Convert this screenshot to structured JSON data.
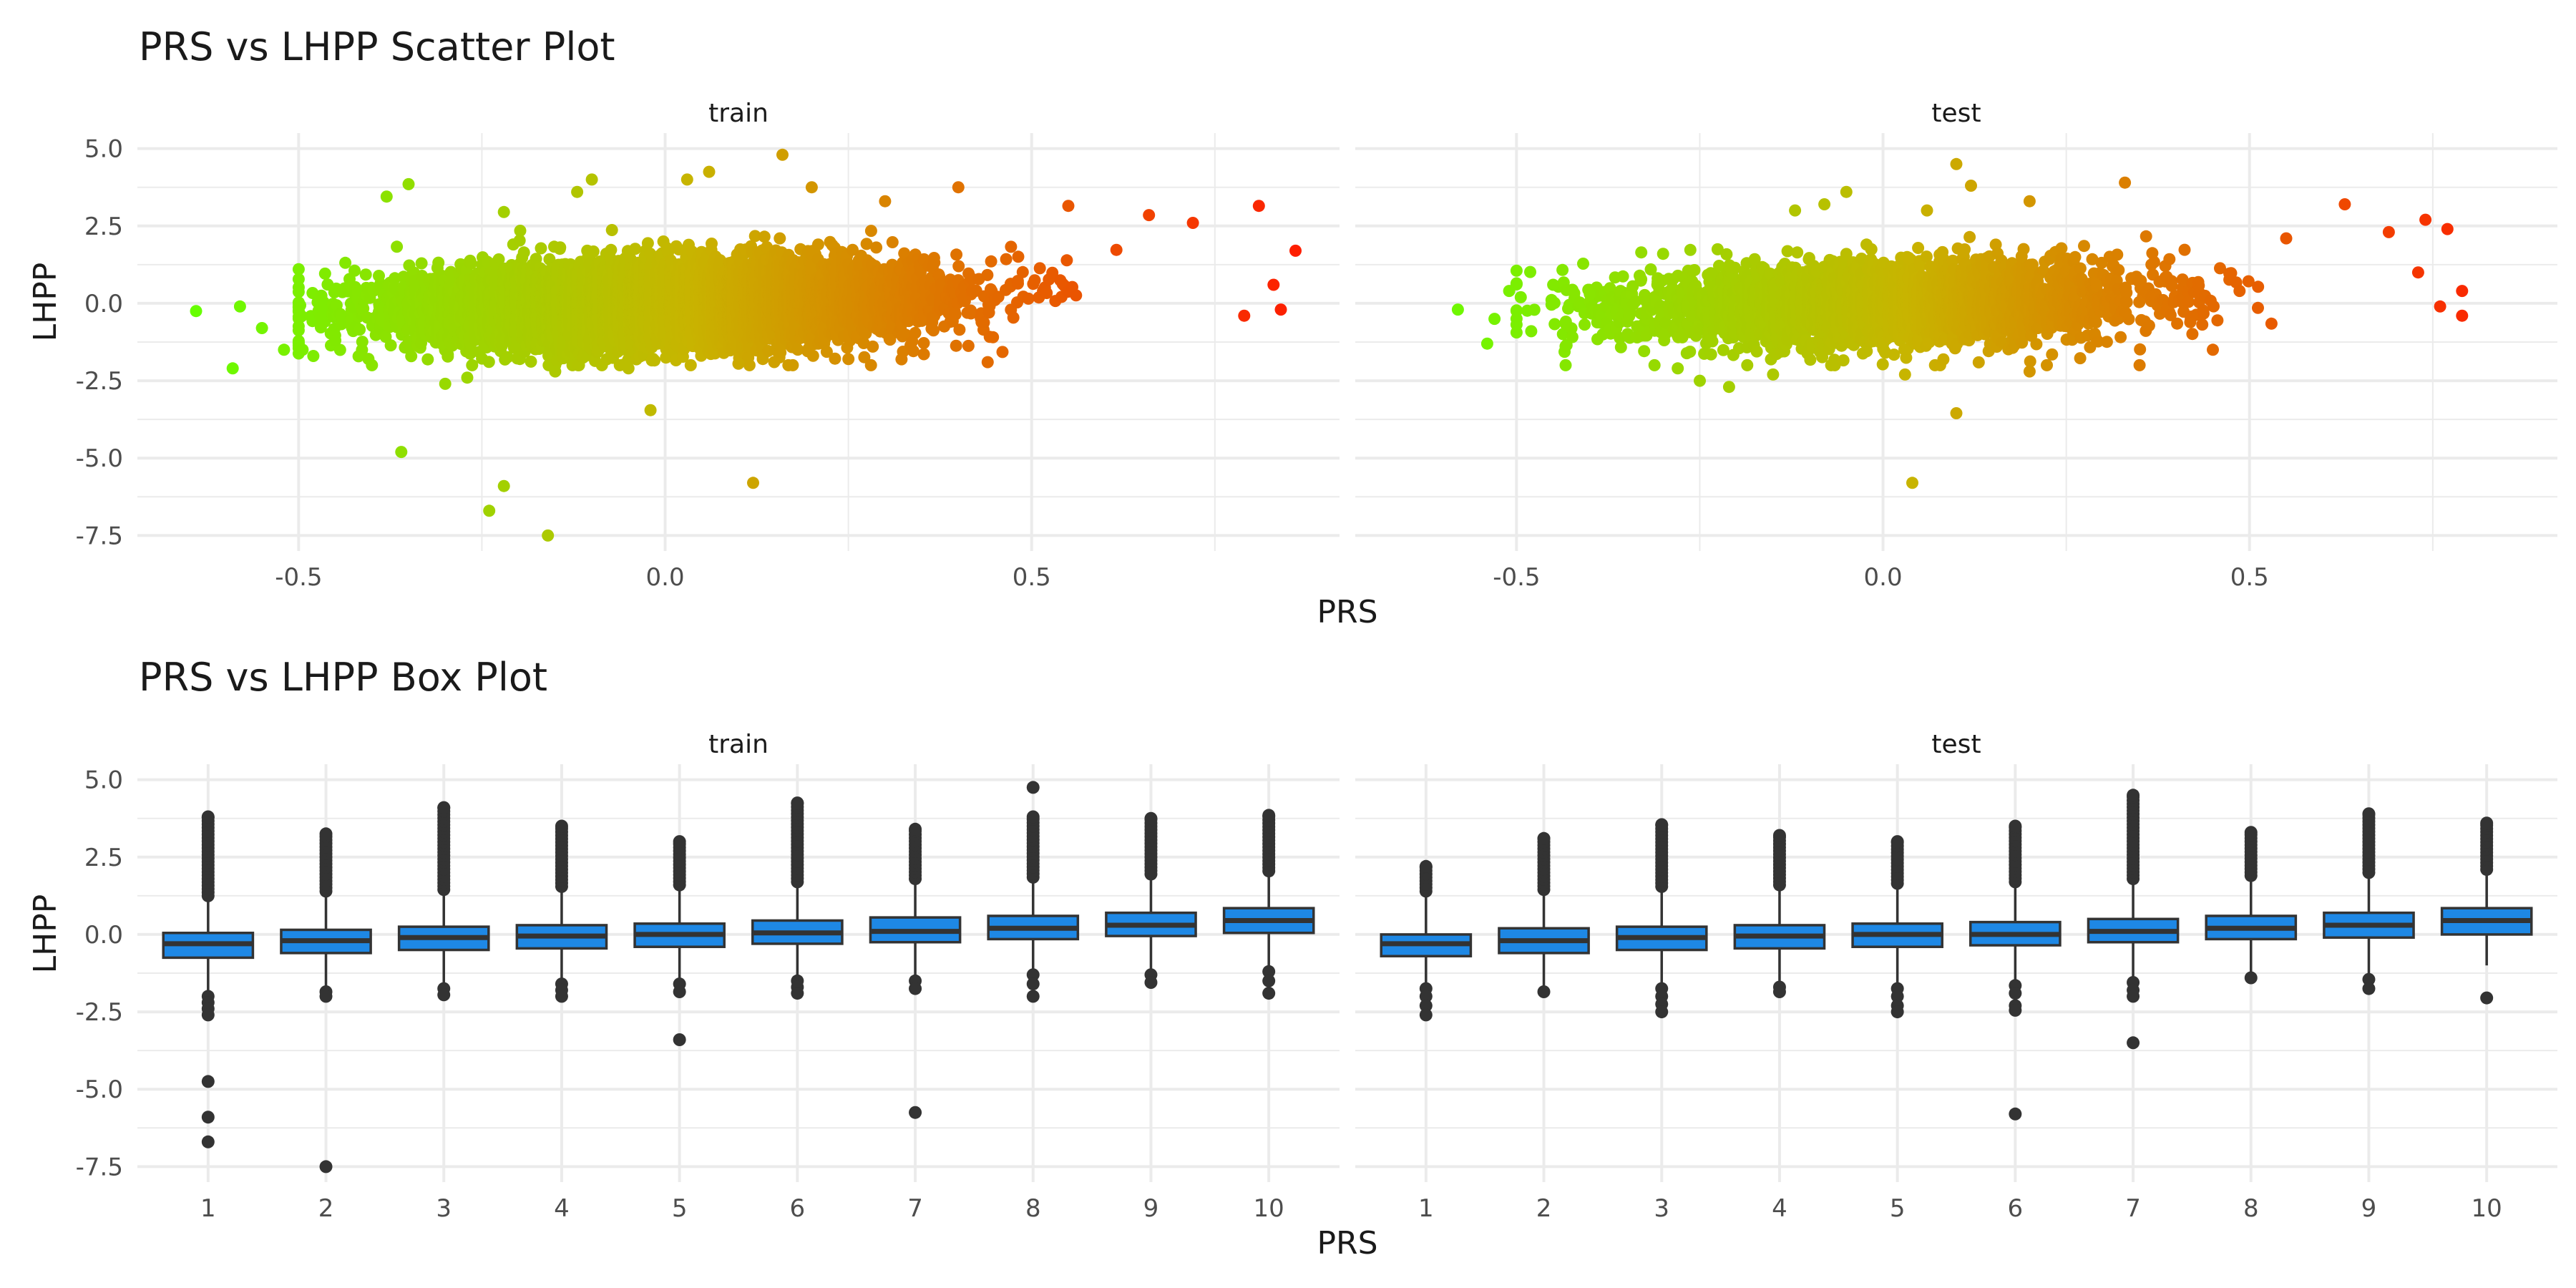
{
  "chart_data": [
    {
      "type": "scatter",
      "title": "PRS vs LHPP Scatter Plot",
      "xlabel": "PRS",
      "ylabel": "LHPP",
      "facets": [
        "train",
        "test"
      ],
      "xlim": [
        -0.72,
        0.92
      ],
      "ylim": [
        -8.0,
        5.5
      ],
      "xticks": [
        -0.5,
        0.0,
        0.5
      ],
      "xtick_labels": [
        "-0.5",
        "0.0",
        "0.5"
      ],
      "yticks": [
        5.0,
        2.5,
        0.0,
        -2.5,
        -5.0,
        -7.5
      ],
      "ytick_labels": [
        "5.0",
        "2.5",
        "0.0",
        "-2.5",
        "-5.0",
        "-7.5"
      ],
      "color_gradient": {
        "low": "#66ff00",
        "mid": "#c8b400",
        "high": "#ff1a00",
        "mapped_to": "PRS"
      },
      "grid": true,
      "legend": "none",
      "series": [
        {
          "facet": "train",
          "points": [
            [
              -0.64,
              -0.25
            ],
            [
              -0.59,
              -2.1
            ],
            [
              -0.58,
              -0.1
            ],
            [
              -0.55,
              -0.8
            ],
            [
              -0.52,
              -1.5
            ],
            [
              -0.48,
              -1.7
            ],
            [
              -0.45,
              -1.2
            ],
            [
              -0.38,
              3.45
            ],
            [
              -0.35,
              3.85
            ],
            [
              -0.36,
              -4.8
            ],
            [
              -0.3,
              -2.6
            ],
            [
              -0.27,
              -2.4
            ],
            [
              -0.24,
              -6.7
            ],
            [
              -0.22,
              -5.9
            ],
            [
              -0.16,
              -7.5
            ],
            [
              -0.22,
              2.95
            ],
            [
              -0.12,
              3.6
            ],
            [
              -0.1,
              4.0
            ],
            [
              -0.02,
              -3.45
            ],
            [
              0.03,
              4.0
            ],
            [
              0.06,
              4.25
            ],
            [
              0.16,
              4.8
            ],
            [
              0.2,
              3.75
            ],
            [
              0.12,
              -5.8
            ],
            [
              0.3,
              3.3
            ],
            [
              0.4,
              3.75
            ],
            [
              0.55,
              3.15
            ],
            [
              0.66,
              2.85
            ],
            [
              0.72,
              2.6
            ],
            [
              0.81,
              3.15
            ],
            [
              0.86,
              1.7
            ],
            [
              0.83,
              0.6
            ],
            [
              0.84,
              -0.2
            ],
            [
              0.79,
              -0.4
            ],
            [
              0.44,
              -1.9
            ],
            [
              0.25,
              -1.8
            ],
            [
              0.1,
              -1.95
            ],
            [
              -0.05,
              -2.1
            ],
            [
              -0.15,
              -2.2
            ],
            [
              -0.4,
              -2.0
            ]
          ],
          "cloud": {
            "center_x": 0.0,
            "sd_x": 0.17,
            "y_mean_at_x0": 0.0,
            "slope": 0.55,
            "sd_y": 0.75,
            "n": 9000
          }
        },
        {
          "facet": "test",
          "points": [
            [
              -0.58,
              -0.2
            ],
            [
              -0.54,
              -1.3
            ],
            [
              -0.53,
              -0.5
            ],
            [
              -0.51,
              0.4
            ],
            [
              -0.48,
              -0.9
            ],
            [
              -0.45,
              0.6
            ],
            [
              -0.4,
              0.3
            ],
            [
              -0.3,
              1.6
            ],
            [
              -0.28,
              -2.1
            ],
            [
              -0.25,
              -2.5
            ],
            [
              -0.21,
              -2.7
            ],
            [
              -0.12,
              3.0
            ],
            [
              -0.08,
              3.2
            ],
            [
              -0.05,
              3.6
            ],
            [
              0.03,
              -2.3
            ],
            [
              0.06,
              3.0
            ],
            [
              0.1,
              4.5
            ],
            [
              0.12,
              3.8
            ],
            [
              0.1,
              -3.55
            ],
            [
              0.04,
              -5.8
            ],
            [
              0.2,
              3.3
            ],
            [
              0.35,
              -2.0
            ],
            [
              0.33,
              3.9
            ],
            [
              0.55,
              2.1
            ],
            [
              0.63,
              3.2
            ],
            [
              0.69,
              2.3
            ],
            [
              0.74,
              2.7
            ],
            [
              0.77,
              2.4
            ],
            [
              0.79,
              0.4
            ],
            [
              0.79,
              -0.4
            ],
            [
              0.76,
              -0.1
            ],
            [
              0.73,
              1.0
            ],
            [
              0.45,
              -1.5
            ],
            [
              0.2,
              -2.2
            ],
            [
              -0.15,
              -2.3
            ]
          ],
          "cloud": {
            "center_x": 0.0,
            "sd_x": 0.17,
            "y_mean_at_x0": 0.0,
            "slope": 0.55,
            "sd_y": 0.75,
            "n": 3400
          }
        }
      ]
    },
    {
      "type": "box",
      "title": "PRS vs LHPP Box Plot",
      "xlabel": "PRS",
      "ylabel": "LHPP",
      "facets": [
        "train",
        "test"
      ],
      "categories": [
        "1",
        "2",
        "3",
        "4",
        "5",
        "6",
        "7",
        "8",
        "9",
        "10"
      ],
      "ylim": [
        -8.0,
        5.5
      ],
      "yticks": [
        5.0,
        2.5,
        0.0,
        -2.5,
        -5.0,
        -7.5
      ],
      "ytick_labels": [
        "5.0",
        "2.5",
        "0.0",
        "-2.5",
        "-5.0",
        "-7.5"
      ],
      "box_fill": "#1e88e5",
      "box_line": "#333333",
      "outlier_color": "#333333",
      "grid": true,
      "series": [
        {
          "facet": "train",
          "boxes": [
            {
              "q1": -0.75,
              "median": -0.3,
              "q3": 0.05,
              "low": -1.9,
              "high": 1.15,
              "outliers_high_range": [
                1.25,
                3.8
              ],
              "outliers": [
                -2.0,
                -2.2,
                -2.4,
                -2.6,
                -4.75,
                -5.9,
                -6.7
              ]
            },
            {
              "q1": -0.6,
              "median": -0.2,
              "q3": 0.15,
              "low": -1.7,
              "high": 1.3,
              "outliers_high_range": [
                1.4,
                3.25
              ],
              "outliers": [
                -1.85,
                -2.0,
                -7.5
              ]
            },
            {
              "q1": -0.5,
              "median": -0.1,
              "q3": 0.25,
              "low": -1.6,
              "high": 1.35,
              "outliers_high_range": [
                1.45,
                4.1
              ],
              "outliers": [
                -1.75,
                -1.95
              ]
            },
            {
              "q1": -0.45,
              "median": -0.05,
              "q3": 0.3,
              "low": -1.5,
              "high": 1.45,
              "outliers_high_range": [
                1.55,
                3.5
              ],
              "outliers": [
                -1.6,
                -1.8,
                -2.0
              ]
            },
            {
              "q1": -0.4,
              "median": 0.0,
              "q3": 0.35,
              "low": -1.5,
              "high": 1.5,
              "outliers_high_range": [
                1.6,
                3.0
              ],
              "outliers": [
                -1.6,
                -1.85,
                -3.4
              ]
            },
            {
              "q1": -0.3,
              "median": 0.05,
              "q3": 0.45,
              "low": -1.4,
              "high": 1.6,
              "outliers_high_range": [
                1.7,
                4.25
              ],
              "outliers": [
                -1.5,
                -1.7,
                -1.9
              ]
            },
            {
              "q1": -0.25,
              "median": 0.1,
              "q3": 0.55,
              "low": -1.35,
              "high": 1.7,
              "outliers_high_range": [
                1.8,
                3.4
              ],
              "outliers": [
                -1.5,
                -1.75,
                -5.75
              ]
            },
            {
              "q1": -0.15,
              "median": 0.2,
              "q3": 0.6,
              "low": -1.2,
              "high": 1.75,
              "outliers_high_range": [
                1.85,
                3.8
              ],
              "outliers": [
                -1.3,
                -1.6,
                -2.0,
                4.75
              ]
            },
            {
              "q1": -0.05,
              "median": 0.3,
              "q3": 0.7,
              "low": -1.15,
              "high": 1.85,
              "outliers_high_range": [
                1.95,
                3.75
              ],
              "outliers": [
                -1.3,
                -1.55
              ]
            },
            {
              "q1": 0.05,
              "median": 0.45,
              "q3": 0.85,
              "low": -1.05,
              "high": 1.95,
              "outliers_high_range": [
                2.05,
                3.85
              ],
              "outliers": [
                -1.2,
                -1.5,
                -1.9
              ]
            }
          ]
        },
        {
          "facet": "test",
          "boxes": [
            {
              "q1": -0.7,
              "median": -0.3,
              "q3": 0.0,
              "low": -1.6,
              "high": 1.25,
              "outliers_high_range": [
                1.4,
                2.2
              ],
              "outliers": [
                -1.75,
                -2.0,
                -2.3,
                -2.6
              ]
            },
            {
              "q1": -0.6,
              "median": -0.2,
              "q3": 0.2,
              "low": -1.7,
              "high": 1.3,
              "outliers_high_range": [
                1.45,
                3.1
              ],
              "outliers": [
                -1.85
              ]
            },
            {
              "q1": -0.5,
              "median": -0.1,
              "q3": 0.25,
              "low": -1.6,
              "high": 1.4,
              "outliers_high_range": [
                1.55,
                3.55
              ],
              "outliers": [
                -1.75,
                -2.0,
                -2.25,
                -2.5
              ]
            },
            {
              "q1": -0.45,
              "median": -0.05,
              "q3": 0.3,
              "low": -1.55,
              "high": 1.45,
              "outliers_high_range": [
                1.6,
                3.2
              ],
              "outliers": [
                -1.7,
                -1.85
              ]
            },
            {
              "q1": -0.4,
              "median": 0.0,
              "q3": 0.35,
              "low": -1.6,
              "high": 1.5,
              "outliers_high_range": [
                1.65,
                3.0
              ],
              "outliers": [
                -1.75,
                -2.0,
                -2.3,
                -2.5
              ]
            },
            {
              "q1": -0.35,
              "median": 0.0,
              "q3": 0.4,
              "low": -1.5,
              "high": 1.55,
              "outliers_high_range": [
                1.7,
                3.5
              ],
              "outliers": [
                -1.65,
                -1.9,
                -2.3,
                -2.45,
                -5.8
              ]
            },
            {
              "q1": -0.25,
              "median": 0.1,
              "q3": 0.5,
              "low": -1.45,
              "high": 1.65,
              "outliers_high_range": [
                1.8,
                4.5
              ],
              "outliers": [
                -1.55,
                -1.8,
                -2.0,
                -3.5
              ]
            },
            {
              "q1": -0.15,
              "median": 0.2,
              "q3": 0.6,
              "low": -1.3,
              "high": 1.75,
              "outliers_high_range": [
                1.9,
                3.3
              ],
              "outliers": [
                -1.4
              ]
            },
            {
              "q1": -0.1,
              "median": 0.3,
              "q3": 0.7,
              "low": -1.3,
              "high": 1.85,
              "outliers_high_range": [
                2.0,
                3.9
              ],
              "outliers": [
                -1.45,
                -1.75
              ]
            },
            {
              "q1": 0.0,
              "median": 0.45,
              "q3": 0.85,
              "low": -1.0,
              "high": 1.95,
              "outliers_high_range": [
                2.1,
                3.6
              ],
              "outliers": [
                -2.05
              ]
            }
          ]
        }
      ]
    }
  ]
}
